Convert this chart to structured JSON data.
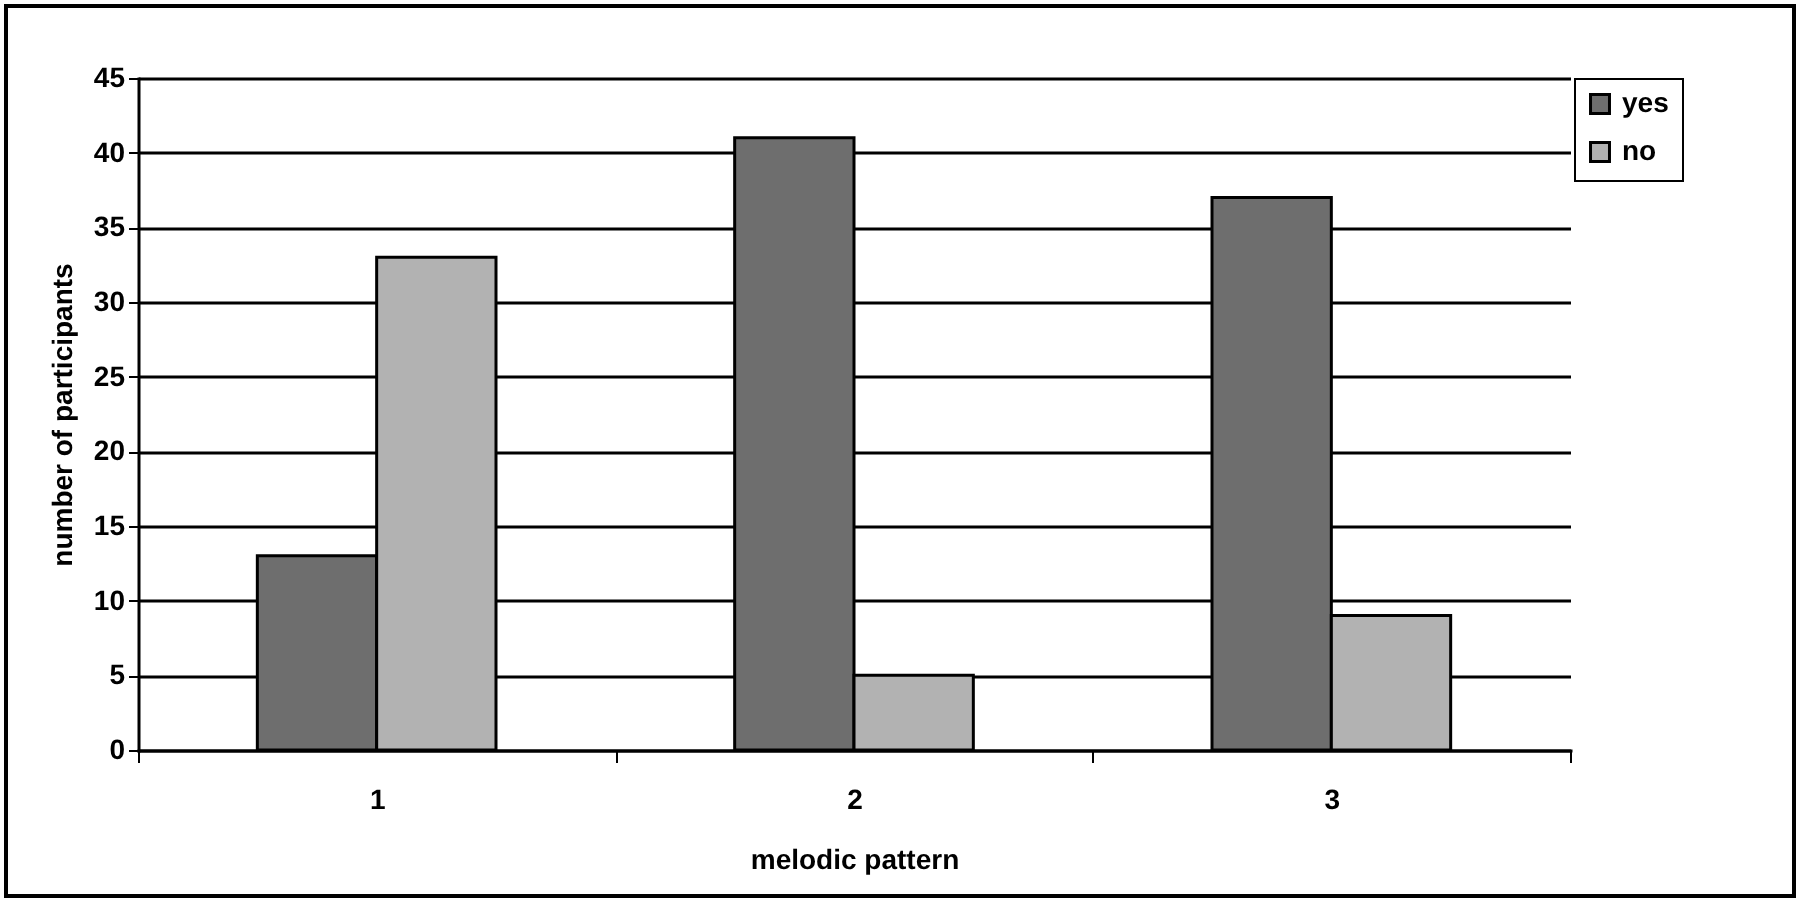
{
  "chart_data": {
    "type": "bar",
    "xlabel": "melodic pattern",
    "ylabel": "number of participants",
    "categories": [
      "1",
      "2",
      "3"
    ],
    "series": [
      {
        "name": "yes",
        "color": "#6e6e6e",
        "values": [
          13,
          41,
          37
        ]
      },
      {
        "name": "no",
        "color": "#b2b2b2",
        "values": [
          33,
          5,
          9
        ]
      }
    ],
    "ylim": [
      0,
      45
    ],
    "yticks": [
      0,
      5,
      10,
      15,
      20,
      25,
      30,
      35,
      40,
      45
    ],
    "grid": "y",
    "legend": "right"
  }
}
